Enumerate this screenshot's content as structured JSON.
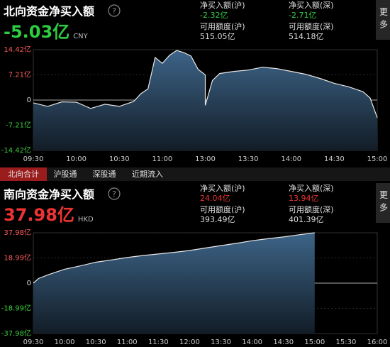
{
  "tabs": [
    "北向合计",
    "沪股通",
    "深股通",
    "近期流入"
  ],
  "active_tab": 0,
  "chart_data": [
    {
      "type": "area",
      "title": "北向资金净买入额",
      "help": "?",
      "more": "更多",
      "headline": "-5.03亿",
      "headline_color": "#2ecc40",
      "currency": "CNY",
      "stats": [
        {
          "label": "净买入额(沪)",
          "value": "-2.32亿",
          "color": "#2ecc40"
        },
        {
          "label": "净买入额(深)",
          "value": "-2.71亿",
          "color": "#2ecc40"
        },
        {
          "label": "可用额度(沪)",
          "value": "515.05亿",
          "color": "#dddddd"
        },
        {
          "label": "可用额度(深)",
          "value": "514.18亿",
          "color": "#dddddd"
        }
      ],
      "x": [
        "09:30",
        "09:40",
        "09:50",
        "10:00",
        "10:10",
        "10:20",
        "10:30",
        "10:40",
        "10:45",
        "10:50",
        "10:55",
        "11:00",
        "11:05",
        "11:10",
        "11:15",
        "11:20",
        "11:25",
        "11:30",
        "13:00",
        "13:05",
        "13:10",
        "13:20",
        "13:30",
        "13:40",
        "13:50",
        "14:00",
        "14:10",
        "14:20",
        "14:30",
        "14:40",
        "14:50",
        "14:55",
        "15:00"
      ],
      "values": [
        -0.8,
        -1.8,
        -0.5,
        -0.6,
        -2.4,
        -1.2,
        -1.8,
        -0.4,
        1.8,
        3.2,
        12.2,
        10.5,
        12.8,
        14.2,
        13.6,
        12.6,
        8.8,
        7.2,
        -1.5,
        5.6,
        7.6,
        8.2,
        8.6,
        9.4,
        9.0,
        8.2,
        7.4,
        6.2,
        4.8,
        3.8,
        2.4,
        0.6,
        -5.03
      ],
      "color": "#e8e8e8",
      "ylim": [
        -14.42,
        14.42
      ],
      "yticks": [
        {
          "value": 14.42,
          "label": "14.42亿"
        },
        {
          "value": 7.21,
          "label": "7.21亿"
        },
        0,
        {
          "value": -7.21,
          "label": "-7.21亿"
        },
        {
          "value": -14.42,
          "label": "-14.42亿"
        }
      ],
      "xticks": [
        "09:30",
        "10:00",
        "10:30",
        "11:00",
        "13:00",
        "13:30",
        "14:00",
        "14:30",
        "15:00"
      ],
      "grid": true
    },
    {
      "type": "area",
      "title": "南向资金净买入额",
      "help": "?",
      "more": "更多",
      "headline": "37.98亿",
      "headline_color": "#ee3333",
      "currency": "HKD",
      "stats": [
        {
          "label": "净买入额(沪)",
          "value": "24.04亿",
          "color": "#ee3333"
        },
        {
          "label": "净买入额(深)",
          "value": "13.94亿",
          "color": "#ee3333"
        },
        {
          "label": "可用额度(沪)",
          "value": "393.49亿",
          "color": "#dddddd"
        },
        {
          "label": "可用额度(深)",
          "value": "401.39亿",
          "color": "#dddddd"
        }
      ],
      "x": [
        "09:30",
        "09:35",
        "09:45",
        "10:00",
        "10:15",
        "10:30",
        "10:45",
        "11:00",
        "11:15",
        "11:30",
        "11:45",
        "12:00",
        "13:15",
        "13:30",
        "13:45",
        "14:00",
        "14:15",
        "14:30",
        "14:45",
        "15:00"
      ],
      "values": [
        0,
        3.5,
        6.5,
        10.5,
        13,
        15.8,
        17.5,
        19.3,
        20.8,
        22,
        23.2,
        24.6,
        26.5,
        28.3,
        30,
        32,
        33.5,
        34.8,
        36.5,
        37.98
      ],
      "color": "#e8e8e8",
      "ylim": [
        -37.98,
        37.98
      ],
      "yticks": [
        {
          "value": 37.98,
          "label": "37.98亿"
        },
        {
          "value": 18.99,
          "label": "18.99亿"
        },
        0,
        {
          "value": -18.99,
          "label": "-18.99亿"
        },
        {
          "value": -37.98,
          "label": "-37.98亿"
        }
      ],
      "xticks": [
        "09:30",
        "10:00",
        "10:30",
        "11:00",
        "11:30",
        "12:00",
        "13:30",
        "14:00",
        "14:30",
        "15:00",
        "15:30",
        "16:00"
      ],
      "grid": true
    }
  ]
}
